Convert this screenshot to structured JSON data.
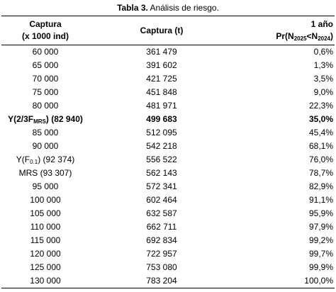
{
  "title": {
    "label": "Tabla 3.",
    "text": "Análisis de riesgo."
  },
  "table": {
    "header": [
      [
        "Captura",
        "(x 1000 ind)"
      ],
      [
        "Captura (t)"
      ],
      [
        "1 año",
        {
          "segments": [
            {
              "text": "Pr(N"
            },
            {
              "text": "2025",
              "sub": true
            },
            {
              "text": "<N"
            },
            {
              "text": "2024",
              "sub": true
            },
            {
              "text": ")"
            }
          ]
        }
      ]
    ],
    "rows": [
      {
        "cells": [
          "60 000",
          "361 479",
          "0,6%"
        ]
      },
      {
        "cells": [
          "65 000",
          "391 602",
          "1,3%"
        ]
      },
      {
        "cells": [
          "70 000",
          "421 725",
          "3,5%"
        ]
      },
      {
        "cells": [
          "75 000",
          "451 848",
          "9,0%"
        ]
      },
      {
        "cells": [
          "80 000",
          "481 971",
          "22,3%"
        ]
      },
      {
        "cells": [
          {
            "segments": [
              {
                "text": "Y(2/3F"
              },
              {
                "text": "MRS",
                "sub": true
              },
              {
                "text": ") (82 940)"
              }
            ]
          },
          "499 683",
          "35,0%"
        ],
        "bold": true
      },
      {
        "cells": [
          "85 000",
          "512 095",
          "45,4%"
        ]
      },
      {
        "cells": [
          "90 000",
          "542 218",
          "68,1%"
        ]
      },
      {
        "cells": [
          {
            "segments": [
              {
                "text": "Y(F"
              },
              {
                "text": "0.1",
                "sub": true
              },
              {
                "text": ") (92 374)"
              }
            ]
          },
          "556 522",
          "76,0%"
        ]
      },
      {
        "cells": [
          "MRS (93 307)",
          "562 143",
          "78,7%"
        ]
      },
      {
        "cells": [
          "95 000",
          "572 341",
          "82,9%"
        ]
      },
      {
        "cells": [
          "100 000",
          "602 464",
          "91,1%"
        ]
      },
      {
        "cells": [
          "105 000",
          "632 587",
          "95,9%"
        ]
      },
      {
        "cells": [
          "110 000",
          "662 711",
          "97,9%"
        ]
      },
      {
        "cells": [
          "115 000",
          "692 834",
          "99,2%"
        ]
      },
      {
        "cells": [
          "120 000",
          "722 957",
          "99,7%"
        ]
      },
      {
        "cells": [
          "125 000",
          "753 080",
          "99,9%"
        ]
      },
      {
        "cells": [
          "130 000",
          "783 204",
          "100,0%"
        ]
      }
    ]
  }
}
